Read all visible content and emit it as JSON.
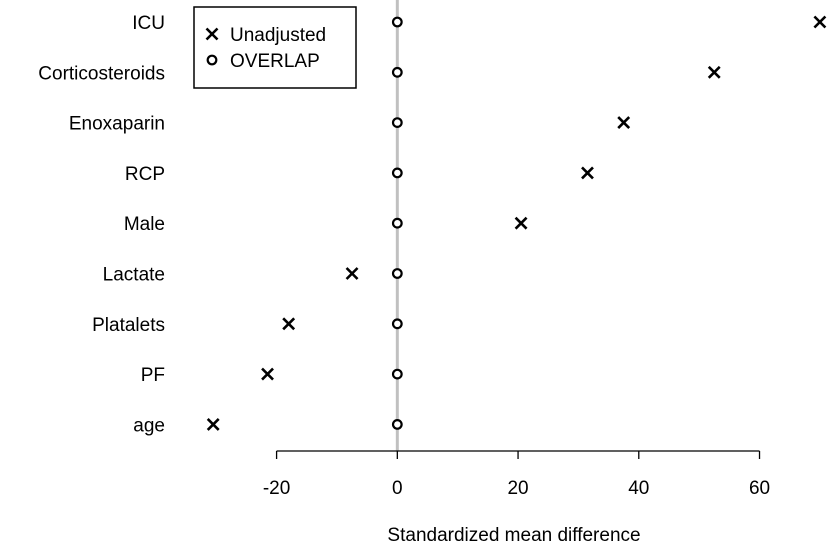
{
  "chart_data": {
    "type": "scatter",
    "categories": [
      "ICU",
      "Corticosteroids",
      "Enoxaparin",
      "RCP",
      "Male",
      "Lactate",
      "Platalets",
      "PF",
      "age"
    ],
    "series": [
      {
        "name": "Unadjusted",
        "marker": "x",
        "values": [
          70,
          52.5,
          37.5,
          31.5,
          20.5,
          -7.5,
          -18,
          -21.5,
          -30.5
        ]
      },
      {
        "name": "OVERLAP",
        "marker": "o",
        "values": [
          0,
          0,
          0,
          0,
          0,
          0,
          0,
          0,
          0
        ]
      }
    ],
    "xlabel": "Standardized mean difference",
    "ylabel": "",
    "xlim": [
      -36,
      73
    ],
    "xticks": [
      -20,
      0,
      20,
      40,
      60
    ],
    "reference_line": 0,
    "reference_line_color": "#c0c0c0",
    "legend": "top-left",
    "grid": false
  }
}
